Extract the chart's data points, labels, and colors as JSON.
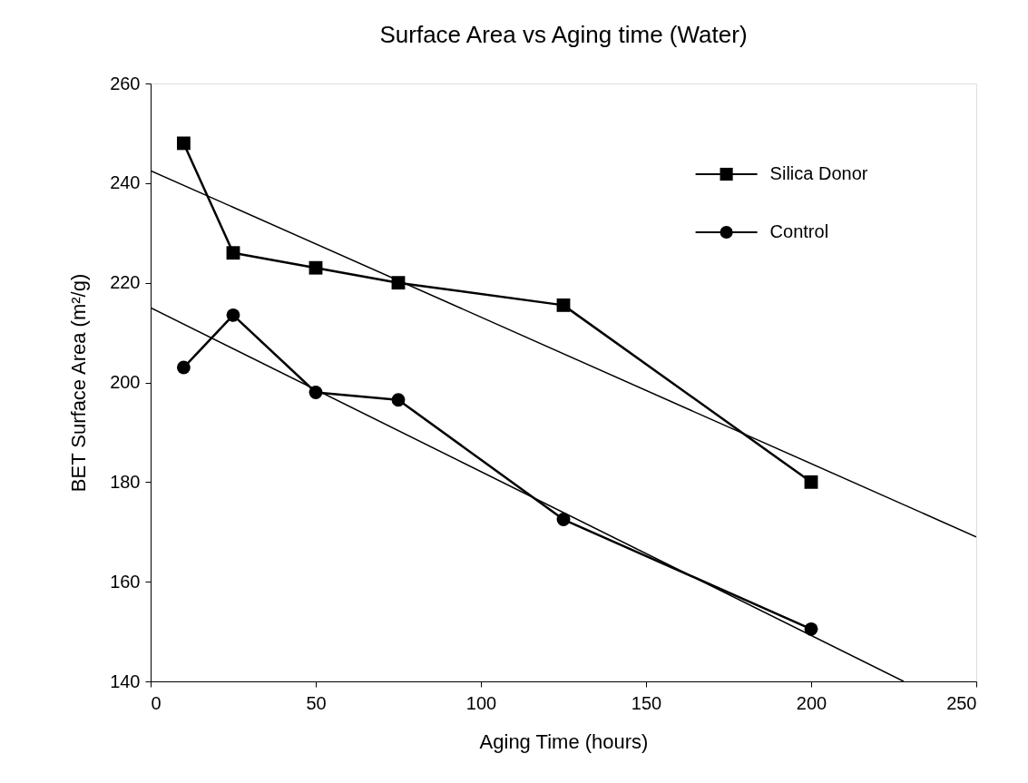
{
  "chart_data": {
    "type": "line",
    "title": "Surface Area vs Aging time (Water)",
    "xlabel": "Aging Time (hours)",
    "ylabel": "BET Surface Area (m²/g)",
    "xlim": [
      0,
      250
    ],
    "xticks": [
      0,
      50,
      100,
      150,
      200,
      250
    ],
    "ylim": [
      140,
      260
    ],
    "yticks": [
      140,
      160,
      180,
      200,
      220,
      240,
      260
    ],
    "grid": false,
    "legend": "top right",
    "line_style": "solid",
    "series": [
      {
        "name": "Silica Donor",
        "color": "#000000",
        "marker": "square",
        "x": [
          10,
          25,
          50,
          75,
          125,
          200
        ],
        "values": [
          248,
          226,
          223,
          220,
          215.5,
          180
        ]
      },
      {
        "name": "Control",
        "color": "#000000",
        "marker": "circle",
        "x": [
          10,
          25,
          50,
          75,
          125,
          200
        ],
        "values": [
          203,
          213.5,
          198,
          196.5,
          172.5,
          150.5
        ]
      },
      {
        "color": "#000000",
        "marker": "none",
        "x": [
          0,
          250
        ],
        "values": [
          242.5,
          169
        ]
      },
      {
        "color": "#000000",
        "marker": "none",
        "x": [
          0,
          228
        ],
        "values": [
          215,
          140
        ]
      }
    ]
  }
}
